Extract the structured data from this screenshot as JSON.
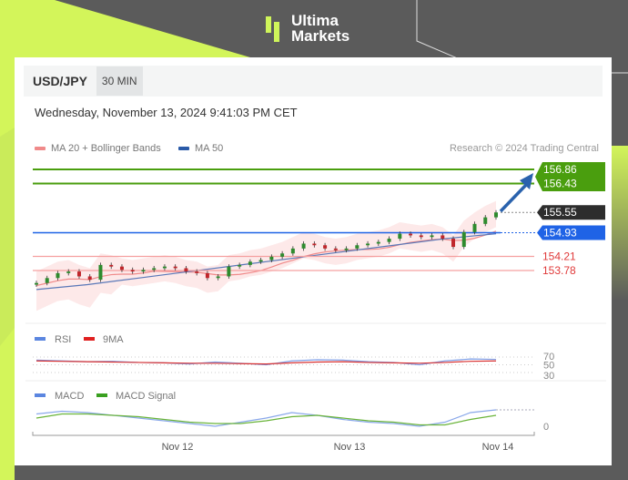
{
  "brand": {
    "name_line1": "Ultima",
    "name_line2": "Markets",
    "accent": "#cff55a"
  },
  "header": {
    "symbol": "USD/JPY",
    "timeframe": "30 MIN"
  },
  "timestamp": "Wednesday, November 13, 2024 9:41:03 PM CET",
  "legend": {
    "ma20": "MA 20 + Bollinger Bands",
    "ma50": "MA 50",
    "credit": "Research © 2024 Trading Central"
  },
  "chart_data": {
    "type": "candlestick",
    "x_ticks": [
      "Nov 12",
      "Nov 13",
      "Nov 14"
    ],
    "closes": [
      153.4,
      153.55,
      153.7,
      153.75,
      153.6,
      153.5,
      153.95,
      153.9,
      153.8,
      153.75,
      153.8,
      153.85,
      153.9,
      153.85,
      153.75,
      153.7,
      153.55,
      153.6,
      153.9,
      153.95,
      154.05,
      154.1,
      154.2,
      154.3,
      154.45,
      154.6,
      154.55,
      154.45,
      154.4,
      154.45,
      154.55,
      154.6,
      154.65,
      154.75,
      154.9,
      154.85,
      154.8,
      154.85,
      154.75,
      154.5,
      154.95,
      155.2,
      155.4,
      155.55
    ],
    "ma50": [
      153.2,
      153.35,
      153.55,
      153.75,
      153.95,
      154.15,
      154.35,
      154.55,
      154.75,
      154.9
    ],
    "levels": [
      {
        "value": "156.86",
        "type": "resistance",
        "color": "#4a9e0e"
      },
      {
        "value": "156.43",
        "type": "resistance",
        "color": "#4a9e0e"
      },
      {
        "value": "155.55",
        "type": "last",
        "color": "#2d2d2d"
      },
      {
        "value": "154.93",
        "type": "ma50",
        "color": "#1f63e6"
      },
      {
        "value": "154.21",
        "type": "support",
        "color": "#e03a3a"
      },
      {
        "value": "153.78",
        "type": "support",
        "color": "#e03a3a"
      }
    ],
    "rsi": {
      "legend": [
        "RSI",
        "9MA"
      ],
      "levels": [
        "70",
        "50",
        "30"
      ],
      "rsi": [
        62,
        60,
        58,
        59,
        56,
        55,
        52,
        57,
        54,
        50,
        60,
        63,
        62,
        58,
        56,
        50,
        60,
        65,
        64
      ],
      "ma": [
        60,
        59,
        58,
        57,
        56,
        55,
        54,
        54,
        53,
        52,
        55,
        57,
        58,
        56,
        55,
        54,
        56,
        59,
        60
      ]
    },
    "macd": {
      "legend": [
        "MACD",
        "MACD Signal"
      ],
      "zero_label": "0",
      "macd": [
        0.09,
        0.11,
        0.1,
        0.08,
        0.06,
        0.04,
        0.02,
        0.0,
        0.03,
        0.06,
        0.1,
        0.08,
        0.05,
        0.03,
        0.02,
        0.0,
        0.03,
        0.1,
        0.12
      ],
      "signal": [
        0.06,
        0.09,
        0.09,
        0.08,
        0.07,
        0.05,
        0.03,
        0.02,
        0.02,
        0.04,
        0.07,
        0.08,
        0.06,
        0.04,
        0.03,
        0.01,
        0.01,
        0.05,
        0.08
      ]
    }
  }
}
